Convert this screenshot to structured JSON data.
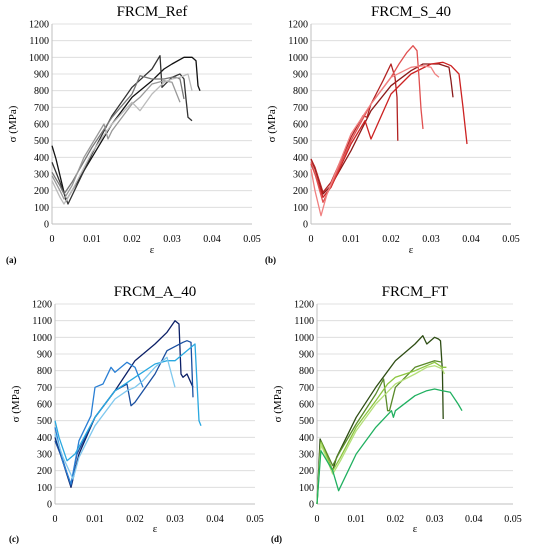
{
  "chart_data": [
    {
      "type": "line",
      "panel_label": "(a)",
      "title": "FRCM_Ref",
      "xlabel": "ε",
      "ylabel": "σ (MPa)",
      "xlim": [
        0,
        0.05
      ],
      "ylim": [
        0,
        1200
      ],
      "xticks": [
        "0",
        "0.01",
        "0.02",
        "0.03",
        "0.04",
        "0.05"
      ],
      "yticks": [
        "0",
        "100",
        "200",
        "300",
        "400",
        "500",
        "600",
        "700",
        "800",
        "900",
        "1000",
        "1100",
        "1200"
      ],
      "grid": "horizontal",
      "series": [
        {
          "color": "#111111",
          "x": [
            0,
            0.001,
            0.0035,
            0.005,
            0.01,
            0.015,
            0.02,
            0.025,
            0.028,
            0.03,
            0.033,
            0.035,
            0.036,
            0.0365,
            0.037
          ],
          "y": [
            470,
            390,
            140,
            200,
            400,
            600,
            760,
            860,
            930,
            960,
            1000,
            1000,
            980,
            830,
            800
          ]
        },
        {
          "color": "#333333",
          "x": [
            0,
            0.002,
            0.004,
            0.006,
            0.01,
            0.015,
            0.02,
            0.025,
            0.027,
            0.0275,
            0.03,
            0.032,
            0.033,
            0.0335,
            0.034,
            0.035
          ],
          "y": [
            370,
            250,
            120,
            220,
            420,
            650,
            820,
            930,
            1010,
            820,
            880,
            900,
            870,
            750,
            640,
            620
          ]
        },
        {
          "color": "#777777",
          "x": [
            0,
            0.002,
            0.003,
            0.005,
            0.01,
            0.015,
            0.02,
            0.022,
            0.025,
            0.028,
            0.03,
            0.031,
            0.032,
            0.033
          ],
          "y": [
            310,
            230,
            180,
            250,
            460,
            640,
            780,
            890,
            870,
            870,
            880,
            880,
            870,
            750
          ]
        },
        {
          "color": "#999999",
          "x": [
            0,
            0.002,
            0.003,
            0.005,
            0.008,
            0.01,
            0.013,
            0.014,
            0.015,
            0.02,
            0.022,
            0.025,
            0.028,
            0.03,
            0.032
          ],
          "y": [
            290,
            200,
            150,
            230,
            400,
            480,
            600,
            510,
            560,
            720,
            760,
            840,
            860,
            850,
            730
          ]
        },
        {
          "color": "#bbbbbb",
          "x": [
            0,
            0.002,
            0.003,
            0.005,
            0.01,
            0.015,
            0.02,
            0.022,
            0.025,
            0.028,
            0.03,
            0.032,
            0.034,
            0.035
          ],
          "y": [
            260,
            160,
            120,
            200,
            430,
            600,
            730,
            680,
            780,
            850,
            870,
            880,
            900,
            800
          ]
        }
      ]
    },
    {
      "type": "line",
      "panel_label": "(b)",
      "title": "FRCM_S_40",
      "xlabel": "ε",
      "ylabel": "σ (MPa)",
      "xlim": [
        0,
        0.05
      ],
      "ylim": [
        0,
        1200
      ],
      "xticks": [
        "0",
        "0.01",
        "0.02",
        "0.03",
        "0.04",
        "0.05"
      ],
      "yticks": [
        "0",
        "100",
        "200",
        "300",
        "400",
        "500",
        "600",
        "700",
        "800",
        "900",
        "1000",
        "1100",
        "1200"
      ],
      "grid": "horizontal",
      "series": [
        {
          "color": "#8b1a1a",
          "x": [
            0,
            0.001,
            0.003,
            0.005,
            0.01,
            0.015,
            0.02,
            0.025,
            0.028,
            0.032,
            0.0345,
            0.035,
            0.0355
          ],
          "y": [
            390,
            330,
            180,
            230,
            440,
            680,
            830,
            920,
            960,
            960,
            940,
            860,
            760
          ]
        },
        {
          "color": "#b22222",
          "x": [
            0,
            0.001,
            0.003,
            0.005,
            0.01,
            0.013,
            0.014,
            0.015,
            0.018,
            0.02,
            0.021,
            0.0215,
            0.0217
          ],
          "y": [
            390,
            340,
            190,
            250,
            520,
            650,
            640,
            720,
            860,
            960,
            880,
            760,
            500
          ]
        },
        {
          "color": "#cc2222",
          "x": [
            0,
            0.001,
            0.003,
            0.005,
            0.01,
            0.0135,
            0.015,
            0.02,
            0.025,
            0.03,
            0.033,
            0.035,
            0.037,
            0.038,
            0.039
          ],
          "y": [
            360,
            300,
            160,
            220,
            480,
            620,
            510,
            780,
            900,
            960,
            970,
            950,
            900,
            700,
            480
          ]
        },
        {
          "color": "#e05050",
          "x": [
            0,
            0.001,
            0.003,
            0.005,
            0.01,
            0.015,
            0.02,
            0.022,
            0.024,
            0.0255,
            0.0265,
            0.027,
            0.0275,
            0.028
          ],
          "y": [
            370,
            300,
            130,
            230,
            500,
            720,
            880,
            960,
            1030,
            1070,
            1040,
            880,
            690,
            570
          ]
        },
        {
          "color": "#f08080",
          "x": [
            0,
            0.001,
            0.0025,
            0.004,
            0.006,
            0.01,
            0.015,
            0.02,
            0.025,
            0.028,
            0.03,
            0.031,
            0.032
          ],
          "y": [
            330,
            200,
            50,
            180,
            300,
            540,
            720,
            880,
            940,
            950,
            940,
            900,
            880
          ]
        }
      ]
    },
    {
      "type": "line",
      "panel_label": "(c)",
      "title": "FRCM_A_40",
      "xlabel": "ε",
      "ylabel": "σ (MPa)",
      "xlim": [
        0,
        0.05
      ],
      "ylim": [
        0,
        1200
      ],
      "xticks": [
        "0",
        "0.01",
        "0.02",
        "0.03",
        "0.04",
        "0.05"
      ],
      "yticks": [
        "0",
        "100",
        "200",
        "300",
        "400",
        "500",
        "600",
        "700",
        "800",
        "900",
        "1000",
        "1100",
        "1200"
      ],
      "grid": "horizontal",
      "series": [
        {
          "color": "#0b1f66",
          "x": [
            0,
            0.002,
            0.004,
            0.006,
            0.01,
            0.015,
            0.02,
            0.025,
            0.028,
            0.03,
            0.031,
            0.0315,
            0.032,
            0.033,
            0.0345
          ],
          "y": [
            400,
            250,
            100,
            300,
            520,
            680,
            860,
            960,
            1030,
            1100,
            1080,
            780,
            760,
            780,
            700
          ]
        },
        {
          "color": "#1a4fa0",
          "x": [
            0,
            0.002,
            0.004,
            0.0055,
            0.01,
            0.015,
            0.018,
            0.019,
            0.02,
            0.025,
            0.028,
            0.032,
            0.033,
            0.034,
            0.0345
          ],
          "y": [
            380,
            260,
            110,
            300,
            520,
            680,
            720,
            590,
            610,
            780,
            920,
            970,
            980,
            970,
            640
          ]
        },
        {
          "color": "#2a7fd4",
          "x": [
            0,
            0.002,
            0.004,
            0.006,
            0.009,
            0.01,
            0.012,
            0.014,
            0.015,
            0.018,
            0.02,
            0.022
          ],
          "y": [
            460,
            250,
            120,
            380,
            530,
            700,
            720,
            820,
            790,
            850,
            820,
            700
          ]
        },
        {
          "color": "#29a8e0",
          "x": [
            0,
            0.001,
            0.003,
            0.005,
            0.01,
            0.015,
            0.02,
            0.025,
            0.028,
            0.03,
            0.035,
            0.036,
            0.0365
          ],
          "y": [
            500,
            400,
            260,
            300,
            520,
            680,
            760,
            840,
            860,
            860,
            960,
            500,
            470
          ]
        },
        {
          "color": "#7fc8ee",
          "x": [
            0,
            0.002,
            0.0045,
            0.006,
            0.01,
            0.015,
            0.018,
            0.02,
            0.022,
            0.025,
            0.028,
            0.03
          ],
          "y": [
            420,
            280,
            150,
            280,
            470,
            630,
            680,
            700,
            740,
            820,
            880,
            700
          ]
        }
      ]
    },
    {
      "type": "line",
      "panel_label": "(d)",
      "title": "FRCM_FT",
      "xlabel": "ε",
      "ylabel": "σ (MPa)",
      "xlim": [
        0,
        0.05
      ],
      "ylim": [
        0,
        1200
      ],
      "xticks": [
        "0",
        "0.01",
        "0.02",
        "0.03",
        "0.04",
        "0.05"
      ],
      "yticks": [
        "0",
        "100",
        "200",
        "300",
        "400",
        "500",
        "600",
        "700",
        "800",
        "900",
        "1000",
        "1100",
        "1200"
      ],
      "grid": "horizontal",
      "series": [
        {
          "color": "#2e4d14",
          "x": [
            0,
            0.0008,
            0.004,
            0.005,
            0.01,
            0.015,
            0.02,
            0.025,
            0.027,
            0.028,
            0.03,
            0.031,
            0.0315,
            0.032,
            0.0322
          ],
          "y": [
            0,
            390,
            200,
            280,
            520,
            700,
            860,
            960,
            1010,
            960,
            1000,
            990,
            980,
            800,
            510
          ]
        },
        {
          "color": "#5a8a2a",
          "x": [
            0,
            0.001,
            0.004,
            0.0055,
            0.01,
            0.015,
            0.017,
            0.018,
            0.0185,
            0.02,
            0.025,
            0.03,
            0.032
          ],
          "y": [
            0,
            380,
            230,
            300,
            480,
            660,
            750,
            560,
            560,
            700,
            820,
            860,
            850
          ]
        },
        {
          "color": "#8cc63f",
          "x": [
            0,
            0.001,
            0.004,
            0.006,
            0.01,
            0.015,
            0.018,
            0.02,
            0.025,
            0.03,
            0.032,
            0.033
          ],
          "y": [
            0,
            370,
            200,
            280,
            460,
            620,
            720,
            760,
            800,
            850,
            820,
            820
          ]
        },
        {
          "color": "#b5df7a",
          "x": [
            0,
            0.001,
            0.004,
            0.006,
            0.01,
            0.015,
            0.02,
            0.025,
            0.028,
            0.03,
            0.032,
            0.0325
          ],
          "y": [
            0,
            360,
            180,
            260,
            440,
            600,
            720,
            780,
            820,
            830,
            810,
            780
          ]
        },
        {
          "color": "#20b060",
          "x": [
            0,
            0.001,
            0.004,
            0.0055,
            0.01,
            0.015,
            0.019,
            0.0195,
            0.02,
            0.025,
            0.028,
            0.03,
            0.032,
            0.034,
            0.036,
            0.037
          ],
          "y": [
            0,
            320,
            200,
            80,
            300,
            460,
            560,
            520,
            560,
            650,
            680,
            690,
            680,
            670,
            600,
            560
          ]
        }
      ]
    }
  ]
}
